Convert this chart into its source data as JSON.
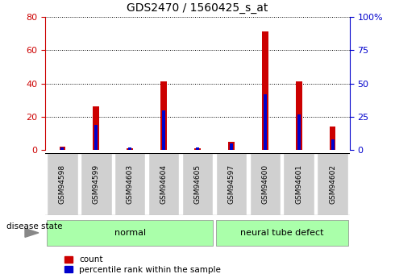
{
  "title": "GDS2470 / 1560425_s_at",
  "samples": [
    "GSM94598",
    "GSM94599",
    "GSM94603",
    "GSM94604",
    "GSM94605",
    "GSM94597",
    "GSM94600",
    "GSM94601",
    "GSM94602"
  ],
  "count_values": [
    2,
    26,
    1,
    41,
    1,
    5,
    71,
    41,
    14
  ],
  "percentile_values": [
    2,
    19,
    2,
    30,
    2,
    5,
    42,
    27,
    8
  ],
  "groups": [
    {
      "label": "normal",
      "start": 0,
      "end": 5
    },
    {
      "label": "neural tube defect",
      "start": 5,
      "end": 9
    }
  ],
  "left_ylim": [
    0,
    80
  ],
  "right_ylim": [
    0,
    100
  ],
  "left_yticks": [
    0,
    20,
    40,
    60,
    80
  ],
  "right_yticks": [
    0,
    25,
    50,
    75,
    100
  ],
  "right_yticklabels": [
    "0",
    "25",
    "50",
    "75",
    "100%"
  ],
  "left_tick_color": "#cc0000",
  "right_tick_color": "#0000cc",
  "bar_color_red": "#cc0000",
  "bar_color_blue": "#0000cc",
  "bg_color": "#ffffff",
  "label_box_color": "#d0d0d0",
  "group_color": "#aaffaa",
  "legend_count_label": "count",
  "legend_pct_label": "percentile rank within the sample",
  "disease_state_label": "disease state",
  "red_bar_width": 0.18,
  "blue_bar_width": 0.1
}
